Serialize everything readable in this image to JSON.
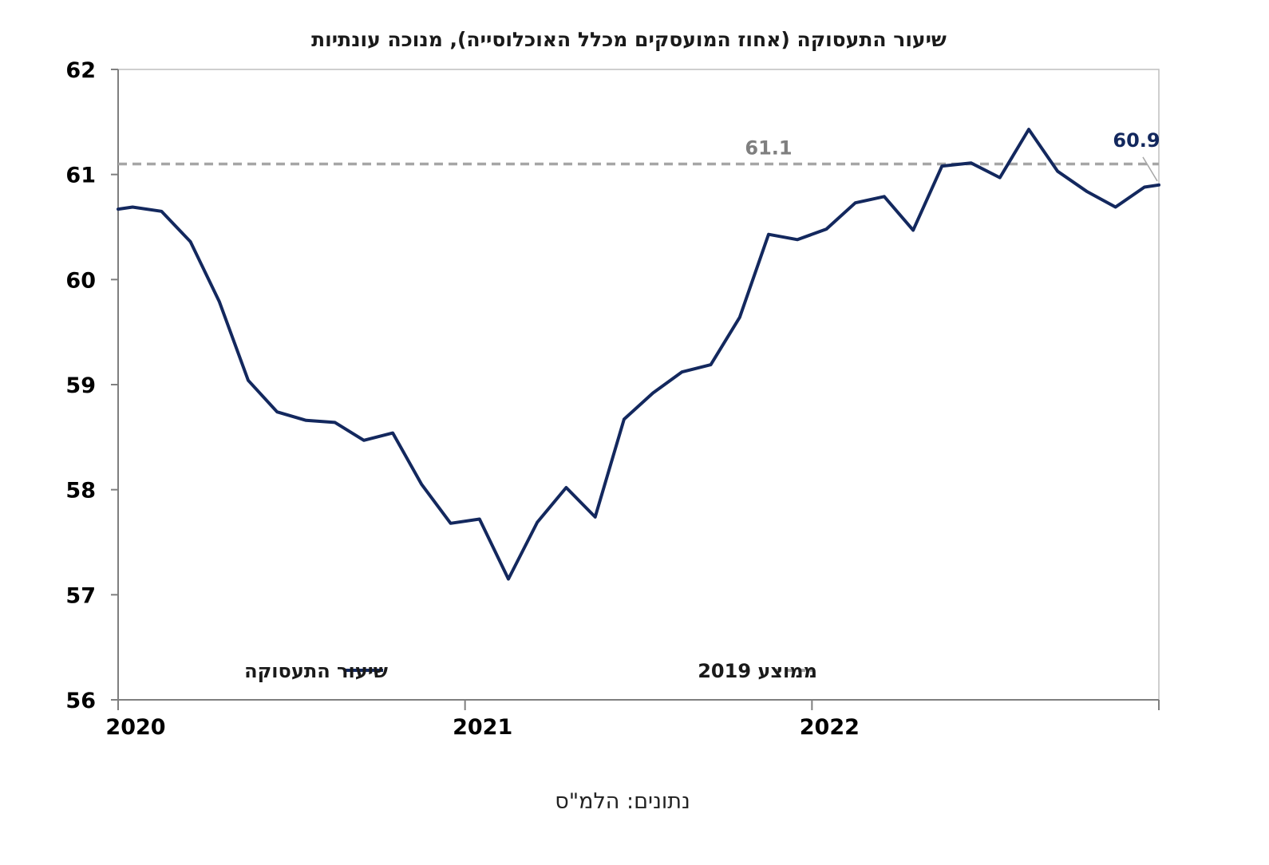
{
  "chart_data": {
    "type": "line",
    "title": "שיעור התעסוקה (אחוז המועסקים מכלל האוכלוסייה), מנוכה עונתיות",
    "source": "נתונים: הלמ\"ס",
    "ylim": [
      56,
      62
    ],
    "yticks": [
      "56",
      "57",
      "58",
      "59",
      "60",
      "61",
      "62"
    ],
    "xlim": [
      0,
      36
    ],
    "xticks": [
      {
        "label": "2020",
        "x": 0
      },
      {
        "label": "2021",
        "x": 12
      },
      {
        "label": "2022",
        "x": 24
      }
    ],
    "grid": false,
    "legend_placement": "bottom",
    "series": [
      {
        "name": "שיעור התעסוקה",
        "color": "#13285e",
        "style": "solid",
        "x": [
          0,
          0.5,
          1.5,
          2.5,
          3.5,
          4.5,
          5.5,
          6.5,
          7.5,
          8.5,
          9.5,
          10.5,
          11.5,
          12.5,
          13.5,
          14.5,
          15.5,
          16.5,
          17.5,
          18.5,
          19.5,
          20.5,
          21.5,
          22.5,
          23.5,
          24.5,
          25.5,
          26.5,
          27.5,
          28.5,
          29.5,
          30.5,
          31.5,
          32.5,
          33.5,
          34.5,
          35.5,
          36
        ],
        "values": [
          60.67,
          60.69,
          60.65,
          60.36,
          59.79,
          59.04,
          58.74,
          58.66,
          58.64,
          58.47,
          58.54,
          58.05,
          57.68,
          57.72,
          57.15,
          57.69,
          58.02,
          57.74,
          58.67,
          58.92,
          59.12,
          59.19,
          59.64,
          60.43,
          60.38,
          60.48,
          60.73,
          60.79,
          60.47,
          61.08,
          61.11,
          60.97,
          61.43,
          61.03,
          60.84,
          60.69,
          60.88,
          60.9
        ]
      },
      {
        "name": "ממוצע 2019",
        "color": "#a6a6a6",
        "style": "dashed",
        "x": [
          0,
          36
        ],
        "values": [
          61.1,
          61.1
        ]
      }
    ],
    "annotations": [
      {
        "text": "61.1",
        "x": 22.5,
        "y": 61.1,
        "color": "#7f7f7f"
      },
      {
        "text": "60.9",
        "x": 36,
        "y": 60.9,
        "color": "#13285e"
      }
    ]
  }
}
